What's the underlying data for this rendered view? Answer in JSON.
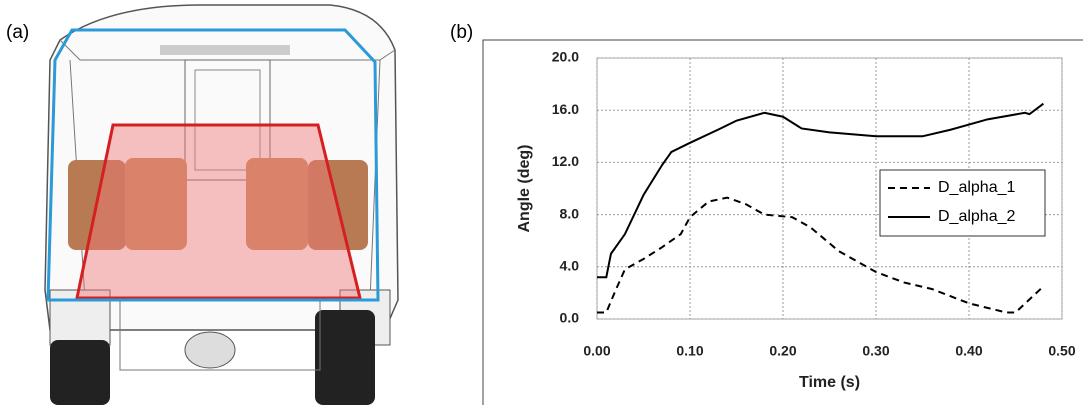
{
  "panel_labels": [
    "(a)",
    "(b)"
  ],
  "chart_data": {
    "type": "line",
    "xlabel": "Time (s)",
    "ylabel": "Angle (deg)",
    "xlim": [
      0,
      0.5
    ],
    "ylim": [
      0,
      20
    ],
    "xticks": [
      {
        "value": 0,
        "label": "0.00"
      },
      {
        "value": 0.1,
        "label": "0.10"
      },
      {
        "value": 0.2,
        "label": "0.20"
      },
      {
        "value": 0.3,
        "label": "0.30"
      },
      {
        "value": 0.4,
        "label": "0.40"
      },
      {
        "value": 0.5,
        "label": "0.50"
      }
    ],
    "yticks": [
      {
        "value": 0,
        "label": "0.0"
      },
      {
        "value": 4,
        "label": "4.0"
      },
      {
        "value": 8,
        "label": "8.0"
      },
      {
        "value": 12,
        "label": "12.0"
      },
      {
        "value": 16,
        "label": "16.0"
      },
      {
        "value": 20,
        "label": "20.0"
      }
    ],
    "grid": true,
    "legend": "right",
    "series": [
      {
        "name": "D_alpha_1",
        "color": "#000000",
        "style": "dashed",
        "x": [
          0,
          0.01,
          0.02,
          0.03,
          0.05,
          0.07,
          0.09,
          0.1,
          0.12,
          0.14,
          0.16,
          0.18,
          0.21,
          0.23,
          0.26,
          0.3,
          0.33,
          0.36,
          0.4,
          0.44,
          0.45,
          0.48
        ],
        "values": [
          0.5,
          0.5,
          2.2,
          3.8,
          4.6,
          5.5,
          6.5,
          7.8,
          9.0,
          9.3,
          8.8,
          8.0,
          7.8,
          7.0,
          5.2,
          3.6,
          2.8,
          2.3,
          1.2,
          0.5,
          0.5,
          2.5
        ]
      },
      {
        "name": "D_alpha_2",
        "color": "#000000",
        "style": "solid",
        "x": [
          0,
          0.01,
          0.015,
          0.03,
          0.05,
          0.07,
          0.08,
          0.1,
          0.13,
          0.15,
          0.18,
          0.2,
          0.22,
          0.25,
          0.3,
          0.35,
          0.38,
          0.42,
          0.46,
          0.465,
          0.48
        ],
        "values": [
          3.2,
          3.2,
          5.0,
          6.5,
          9.5,
          11.8,
          12.8,
          13.5,
          14.5,
          15.2,
          15.8,
          15.5,
          14.6,
          14.3,
          14.0,
          14.0,
          14.5,
          15.3,
          15.8,
          15.7,
          16.5
        ]
      }
    ]
  }
}
